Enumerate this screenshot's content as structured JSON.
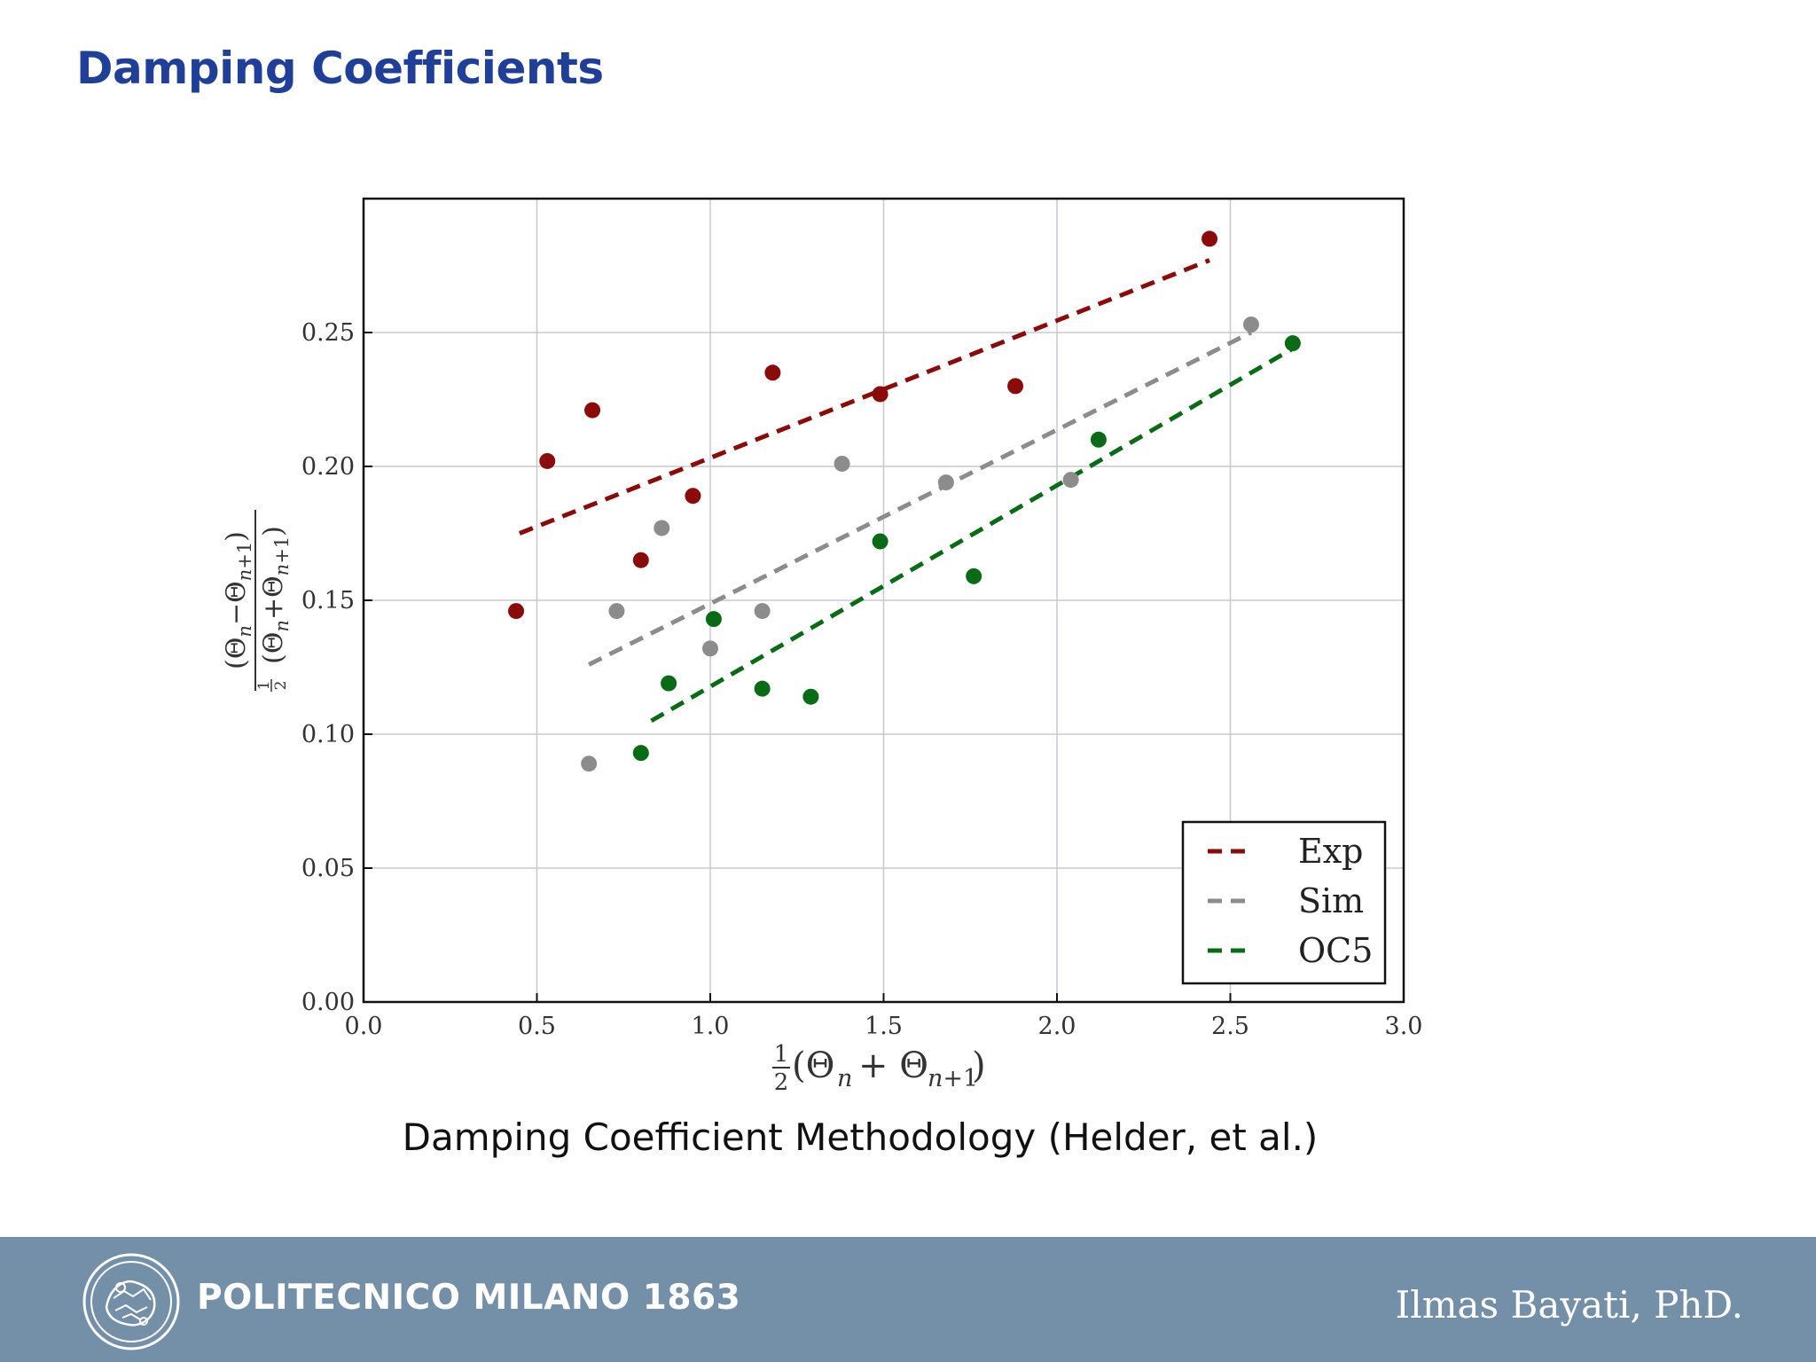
{
  "slide": {
    "title": "Damping Coefficients",
    "caption": "Damping Coefficient Methodology (Helder, et al.)"
  },
  "footer": {
    "org": "POLITECNICO MILANO 1863",
    "author": "Ilmas Bayati, PhD.",
    "logo_icon": "university-seal-icon",
    "color": "#7490a8"
  },
  "chart_data": {
    "type": "scatter",
    "xlim": [
      0.0,
      3.0
    ],
    "ylim": [
      0.0,
      0.3
    ],
    "x_ticks": [
      "0.0",
      "0.5",
      "1.0",
      "1.5",
      "2.0",
      "2.5",
      "3.0"
    ],
    "y_ticks": [
      "0.00",
      "0.05",
      "0.10",
      "0.15",
      "0.20",
      "0.25"
    ],
    "grid": true,
    "legend_position": "bottom-right",
    "series": [
      {
        "name": "Exp",
        "color": "#8b0a0a",
        "points": [
          [
            0.44,
            0.146
          ],
          [
            0.53,
            0.202
          ],
          [
            0.66,
            0.221
          ],
          [
            0.8,
            0.165
          ],
          [
            0.95,
            0.189
          ],
          [
            1.18,
            0.235
          ],
          [
            1.49,
            0.227
          ],
          [
            1.88,
            0.23
          ],
          [
            2.44,
            0.285
          ]
        ],
        "fit": [
          [
            0.45,
            0.175
          ],
          [
            2.44,
            0.277
          ]
        ]
      },
      {
        "name": "Sim",
        "color": "#8c8c8c",
        "points": [
          [
            0.65,
            0.089
          ],
          [
            0.73,
            0.146
          ],
          [
            0.86,
            0.177
          ],
          [
            1.0,
            0.132
          ],
          [
            1.15,
            0.146
          ],
          [
            1.38,
            0.201
          ],
          [
            1.68,
            0.194
          ],
          [
            2.04,
            0.195
          ],
          [
            2.56,
            0.253
          ]
        ],
        "fit": [
          [
            0.65,
            0.126
          ],
          [
            2.56,
            0.25
          ]
        ]
      },
      {
        "name": "OC5",
        "color": "#0a6b16",
        "points": [
          [
            0.8,
            0.093
          ],
          [
            0.88,
            0.119
          ],
          [
            1.01,
            0.143
          ],
          [
            1.15,
            0.117
          ],
          [
            1.29,
            0.114
          ],
          [
            1.49,
            0.172
          ],
          [
            1.76,
            0.159
          ],
          [
            2.12,
            0.21
          ],
          [
            2.68,
            0.246
          ]
        ],
        "fit": [
          [
            0.83,
            0.105
          ],
          [
            2.68,
            0.244
          ]
        ]
      }
    ]
  }
}
